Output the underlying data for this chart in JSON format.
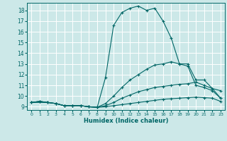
{
  "xlabel": "Humidex (Indice chaleur)",
  "xlim": [
    -0.5,
    23.5
  ],
  "ylim": [
    8.7,
    18.7
  ],
  "yticks": [
    9,
    10,
    11,
    12,
    13,
    14,
    15,
    16,
    17,
    18
  ],
  "xticks": [
    0,
    1,
    2,
    3,
    4,
    5,
    6,
    7,
    8,
    9,
    10,
    11,
    12,
    13,
    14,
    15,
    16,
    17,
    18,
    19,
    20,
    21,
    22,
    23
  ],
  "bg_color": "#cce8e8",
  "line_color": "#006666",
  "grid_color": "#ffffff",
  "series": [
    {
      "x": [
        0,
        1,
        2,
        3,
        4,
        5,
        6,
        7,
        8,
        9,
        10,
        11,
        12,
        13,
        14,
        15,
        16,
        17,
        18,
        19,
        20,
        21,
        22,
        23
      ],
      "y": [
        9.4,
        9.5,
        9.4,
        9.3,
        9.1,
        9.1,
        9.1,
        9.0,
        8.95,
        9.0,
        9.1,
        9.2,
        9.3,
        9.4,
        9.5,
        9.6,
        9.7,
        9.75,
        9.8,
        9.85,
        9.9,
        9.85,
        9.8,
        9.5
      ]
    },
    {
      "x": [
        0,
        1,
        2,
        3,
        4,
        5,
        6,
        7,
        8,
        9,
        10,
        11,
        12,
        13,
        14,
        15,
        16,
        17,
        18,
        19,
        20,
        21,
        22,
        23
      ],
      "y": [
        9.4,
        9.5,
        9.4,
        9.3,
        9.1,
        9.1,
        9.1,
        9.0,
        8.95,
        9.1,
        9.4,
        9.8,
        10.1,
        10.4,
        10.6,
        10.8,
        10.9,
        11.0,
        11.1,
        11.15,
        11.3,
        11.0,
        10.7,
        10.5
      ]
    },
    {
      "x": [
        0,
        1,
        2,
        3,
        4,
        5,
        6,
        7,
        8,
        9,
        10,
        11,
        12,
        13,
        14,
        15,
        16,
        17,
        18,
        19,
        20,
        21,
        22,
        23
      ],
      "y": [
        9.4,
        9.5,
        9.4,
        9.3,
        9.1,
        9.1,
        9.1,
        9.0,
        8.95,
        9.3,
        10.0,
        10.8,
        11.5,
        12.0,
        12.5,
        12.9,
        13.0,
        13.2,
        13.0,
        12.8,
        11.0,
        10.8,
        10.5,
        9.8
      ]
    },
    {
      "x": [
        0,
        2,
        3,
        4,
        5,
        6,
        7,
        8,
        9,
        10,
        11,
        12,
        13,
        14,
        15,
        16,
        17,
        18,
        19,
        20,
        21,
        22,
        23
      ],
      "y": [
        9.4,
        9.4,
        9.3,
        9.1,
        9.1,
        9.1,
        9.0,
        8.95,
        11.7,
        16.6,
        17.8,
        18.2,
        18.4,
        18.0,
        18.2,
        17.0,
        15.4,
        13.0,
        13.0,
        11.5,
        11.5,
        10.7,
        9.8
      ]
    }
  ]
}
